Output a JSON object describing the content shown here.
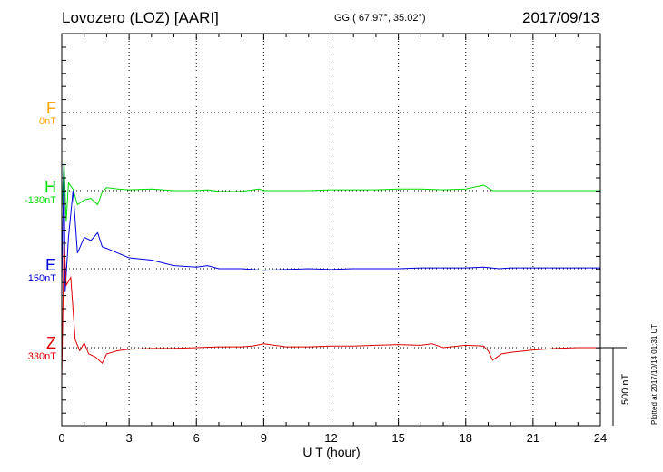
{
  "header": {
    "station": "Lovozero (LOZ)  [AARI]",
    "coords": "GG ( 67.97°,  35.02°)",
    "date": "2017/09/13"
  },
  "colors": {
    "F": "#ffa500",
    "H": "#00dd00",
    "E": "#0000dd",
    "Z": "#dd0000"
  },
  "components": [
    {
      "name": "F",
      "baseline": "0nT"
    },
    {
      "name": "H",
      "baseline": "-130nT"
    },
    {
      "name": "E",
      "baseline": "150nT"
    },
    {
      "name": "Z",
      "baseline": "330nT"
    }
  ],
  "scale_label": "500 nT",
  "plotted_note": "Plotted at 2017/10/14 01:31  UT",
  "chart_data": {
    "type": "line",
    "xlabel": "U T (hour)",
    "xlim": [
      0,
      24
    ],
    "x_ticks": [
      "0",
      "3",
      "6",
      "9",
      "12",
      "15",
      "18",
      "21",
      "24"
    ],
    "grid": true,
    "scale_bar_nT": 500,
    "series": [
      {
        "name": "H",
        "x": [
          0,
          0.1,
          0.2,
          0.3,
          0.5,
          0.7,
          1.0,
          1.3,
          1.6,
          1.8,
          2.0,
          2.5,
          3,
          4,
          5,
          6,
          6.5,
          7,
          8,
          8.8,
          9,
          10,
          11,
          12,
          13,
          14,
          15,
          16,
          17,
          18,
          18.8,
          19.2,
          19.6,
          20,
          21,
          22,
          23,
          24
        ],
        "y": [
          -120,
          180,
          -200,
          50,
          10,
          -90,
          -60,
          -50,
          -90,
          -10,
          20,
          10,
          5,
          10,
          0,
          0,
          5,
          -5,
          -5,
          10,
          0,
          0,
          0,
          5,
          5,
          5,
          10,
          10,
          5,
          10,
          35,
          0,
          0,
          0,
          0,
          0,
          0,
          0
        ]
      },
      {
        "name": "E",
        "x": [
          0,
          0.1,
          0.15,
          0.3,
          0.5,
          0.7,
          1.0,
          1.3,
          1.6,
          1.8,
          2.0,
          2.5,
          3,
          4,
          5,
          6,
          6.5,
          7,
          8,
          9,
          10,
          11,
          12,
          13,
          14,
          15,
          16,
          17,
          18,
          18.8,
          19.5,
          20,
          21,
          22,
          23,
          24
        ],
        "y": [
          -100,
          690,
          -150,
          200,
          500,
          100,
          200,
          180,
          230,
          140,
          130,
          100,
          70,
          55,
          20,
          10,
          20,
          0,
          0,
          -10,
          -5,
          0,
          -5,
          0,
          0,
          0,
          5,
          5,
          5,
          10,
          0,
          5,
          5,
          5,
          5,
          5
        ]
      },
      {
        "name": "Z",
        "x": [
          0,
          0.1,
          0.2,
          0.4,
          0.6,
          0.8,
          1.0,
          1.2,
          1.5,
          1.8,
          2.0,
          2.5,
          3,
          4,
          5,
          6,
          7,
          8,
          8.5,
          9,
          10,
          11,
          12,
          13,
          14,
          15,
          16,
          16.5,
          17,
          18,
          18.8,
          19.0,
          19.2,
          19.6,
          20,
          21,
          22,
          23,
          24
        ],
        "y": [
          -200,
          680,
          400,
          450,
          50,
          -20,
          30,
          -40,
          -60,
          -100,
          -40,
          -20,
          -10,
          -5,
          -5,
          0,
          5,
          5,
          10,
          25,
          5,
          5,
          10,
          10,
          15,
          20,
          15,
          25,
          0,
          15,
          10,
          -20,
          -80,
          -40,
          -30,
          -15,
          -5,
          0,
          0
        ]
      }
    ]
  }
}
